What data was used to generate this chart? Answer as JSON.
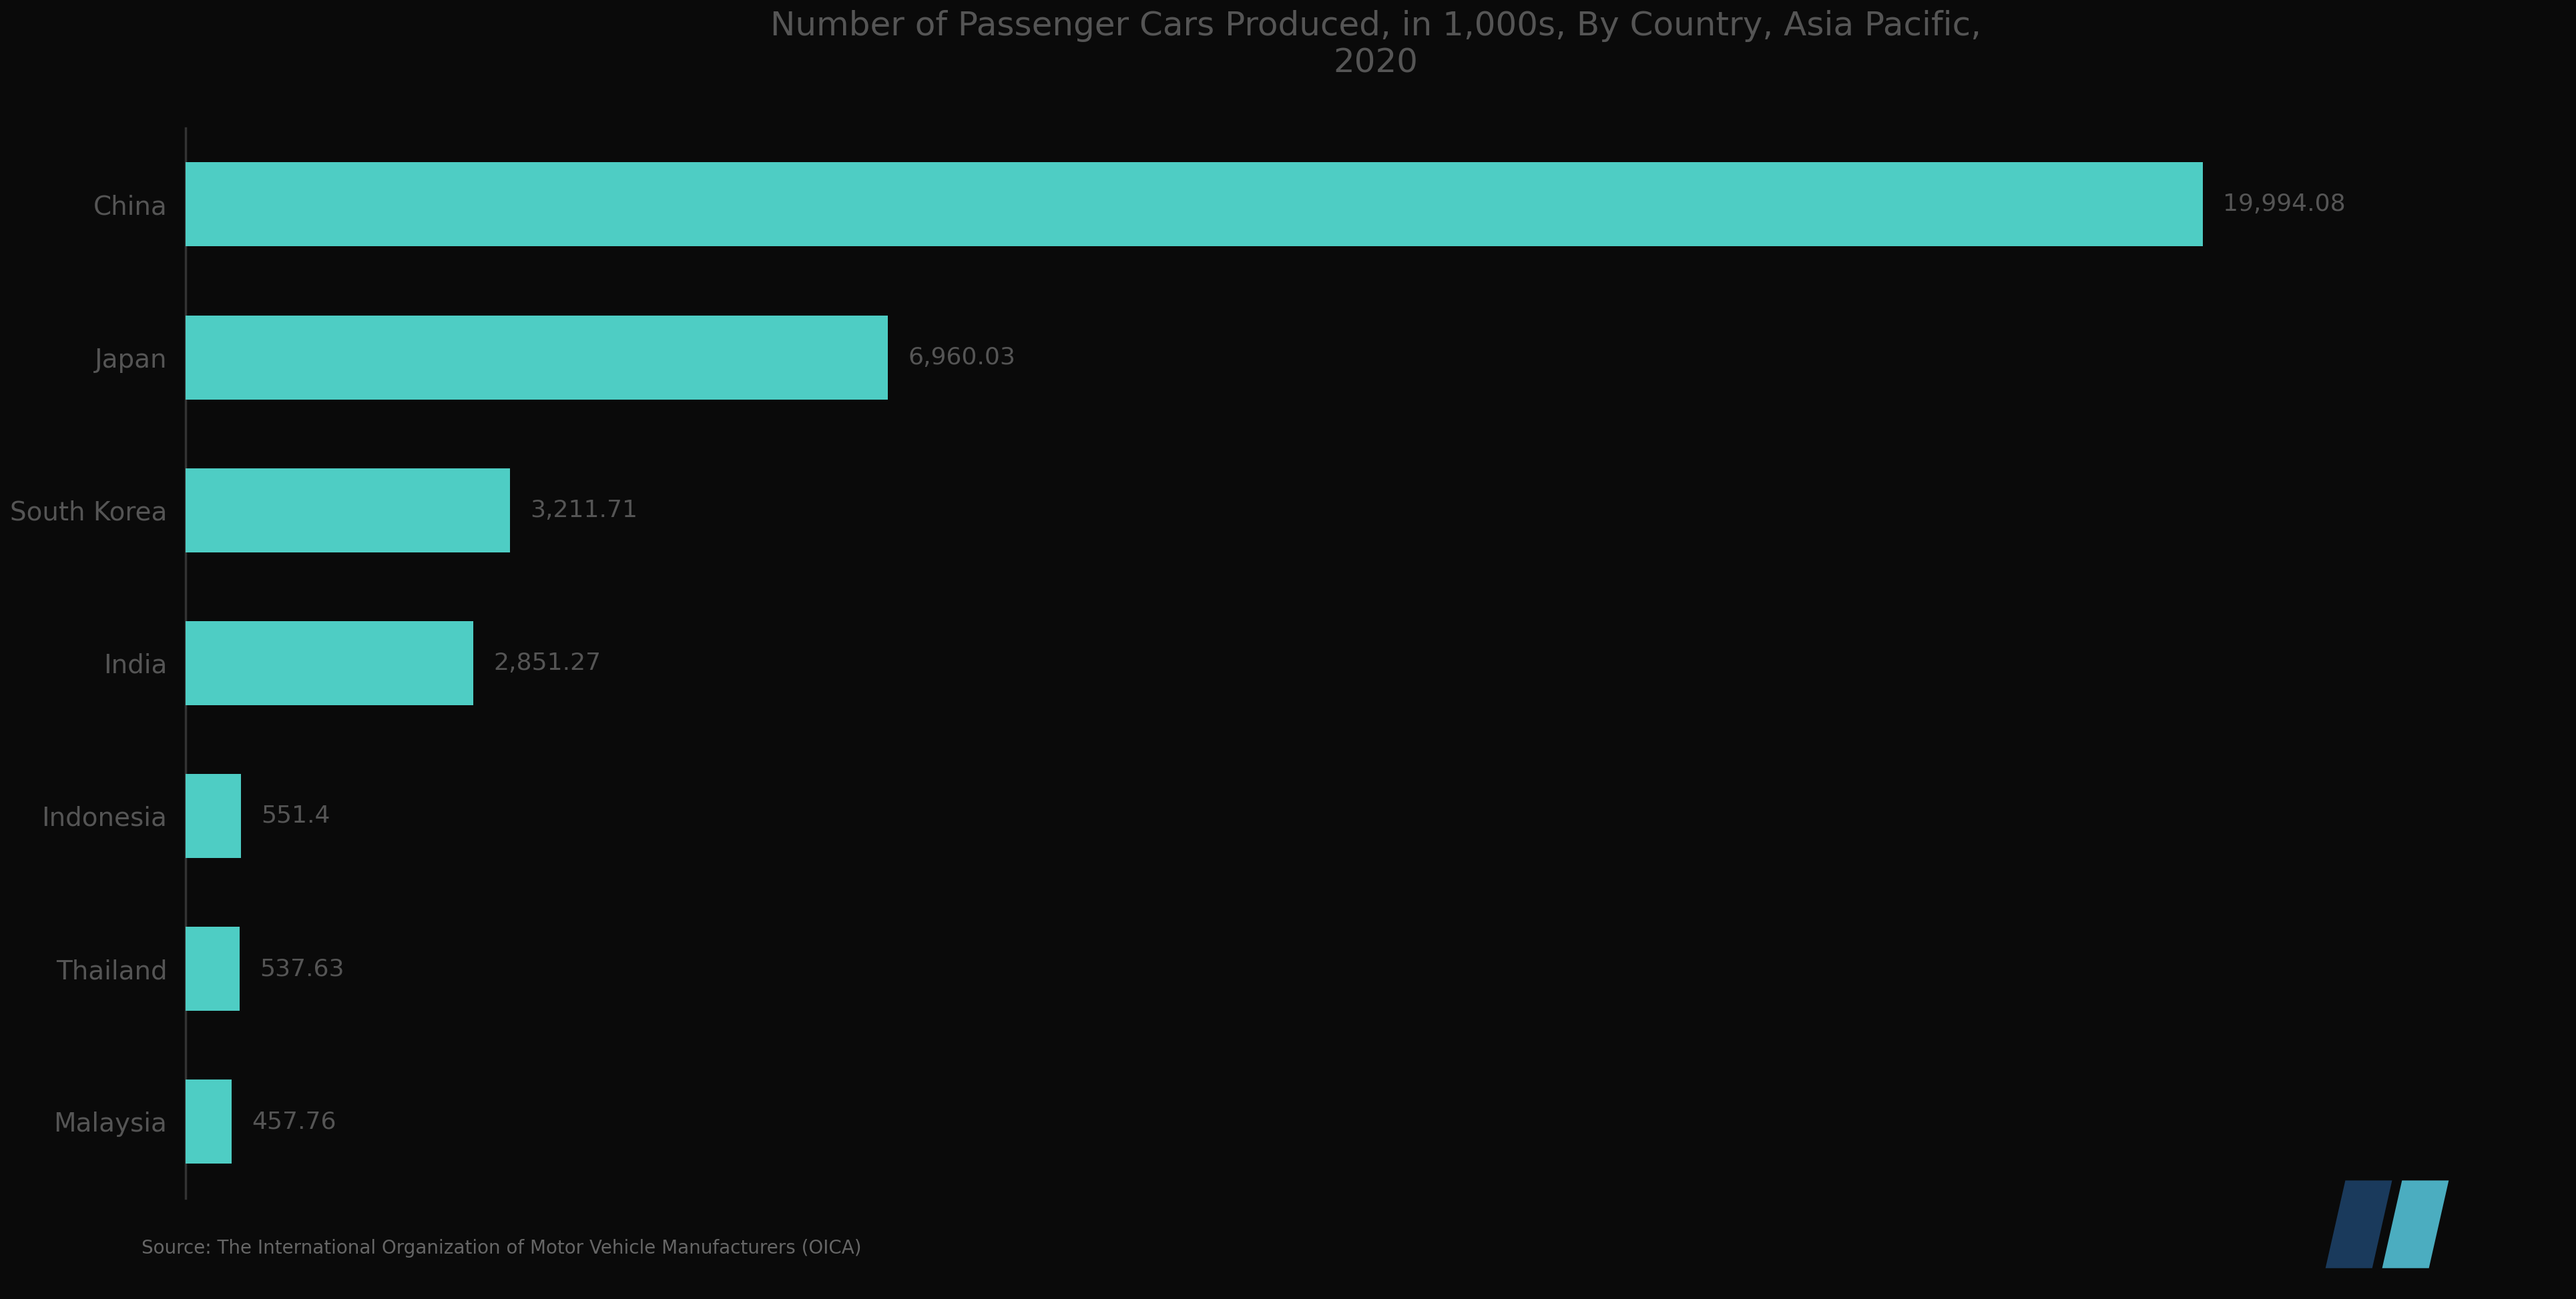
{
  "title": "Number of Passenger Cars Produced, in 1,000s, By Country, Asia Pacific,\n2020",
  "categories": [
    "China",
    "Japan",
    "South Korea",
    "India",
    "Indonesia",
    "Thailand",
    "Malaysia"
  ],
  "values": [
    19994.08,
    6960.03,
    3211.71,
    2851.27,
    551.4,
    537.63,
    457.76
  ],
  "labels": [
    "19,994.08",
    "6,960.03",
    "3,211.71",
    "2,851.27",
    "551.4",
    "537.63",
    "457.76"
  ],
  "bar_color": "#4ECDC4",
  "background_color": "#0a0a0a",
  "text_color": "#555555",
  "title_color": "#555555",
  "label_color": "#555555",
  "spine_color": "#333333",
  "source_text": "Source: The International Organization of Motor Vehicle Manufacturers (OICA)",
  "title_fontsize": 36,
  "label_fontsize": 26,
  "category_fontsize": 28,
  "source_fontsize": 20,
  "logo_left_color": "#1a3a5c",
  "logo_right_color": "#4BADC0"
}
